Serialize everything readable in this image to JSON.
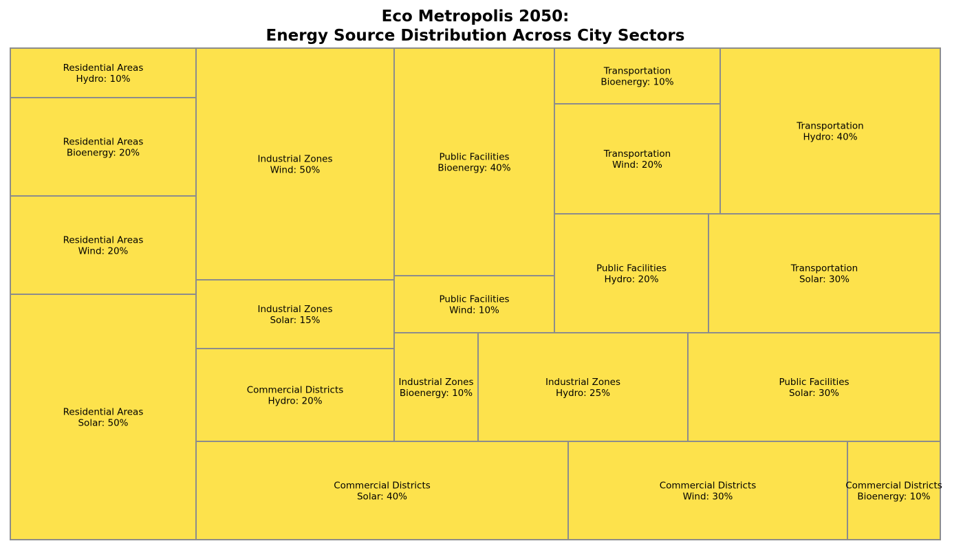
{
  "chart_data": {
    "type": "treemap",
    "title_line1": "Eco Metropolis 2050:",
    "title_line2": "Energy Source Distribution Across City Sectors",
    "fill_color": "#fde24c",
    "stroke_color": "#8c8c8c",
    "cells": [
      {
        "sector": "Residential Areas",
        "source": "Hydro",
        "value": 10
      },
      {
        "sector": "Residential Areas",
        "source": "Bioenergy",
        "value": 20
      },
      {
        "sector": "Residential Areas",
        "source": "Wind",
        "value": 20
      },
      {
        "sector": "Residential Areas",
        "source": "Solar",
        "value": 50
      },
      {
        "sector": "Industrial Zones",
        "source": "Wind",
        "value": 50
      },
      {
        "sector": "Industrial Zones",
        "source": "Solar",
        "value": 15
      },
      {
        "sector": "Commercial Districts",
        "source": "Hydro",
        "value": 20
      },
      {
        "sector": "Public Facilities",
        "source": "Bioenergy",
        "value": 40
      },
      {
        "sector": "Public Facilities",
        "source": "Wind",
        "value": 10
      },
      {
        "sector": "Transportation",
        "source": "Bioenergy",
        "value": 10
      },
      {
        "sector": "Transportation",
        "source": "Wind",
        "value": 20
      },
      {
        "sector": "Transportation",
        "source": "Hydro",
        "value": 40
      },
      {
        "sector": "Public Facilities",
        "source": "Hydro",
        "value": 20
      },
      {
        "sector": "Transportation",
        "source": "Solar",
        "value": 30
      },
      {
        "sector": "Industrial Zones",
        "source": "Bioenergy",
        "value": 10
      },
      {
        "sector": "Industrial Zones",
        "source": "Hydro",
        "value": 25
      },
      {
        "sector": "Public Facilities",
        "source": "Solar",
        "value": 30
      },
      {
        "sector": "Commercial Districts",
        "source": "Solar",
        "value": 40
      },
      {
        "sector": "Commercial Districts",
        "source": "Wind",
        "value": 30
      },
      {
        "sector": "Commercial Districts",
        "source": "Bioenergy",
        "value": 10
      }
    ]
  }
}
